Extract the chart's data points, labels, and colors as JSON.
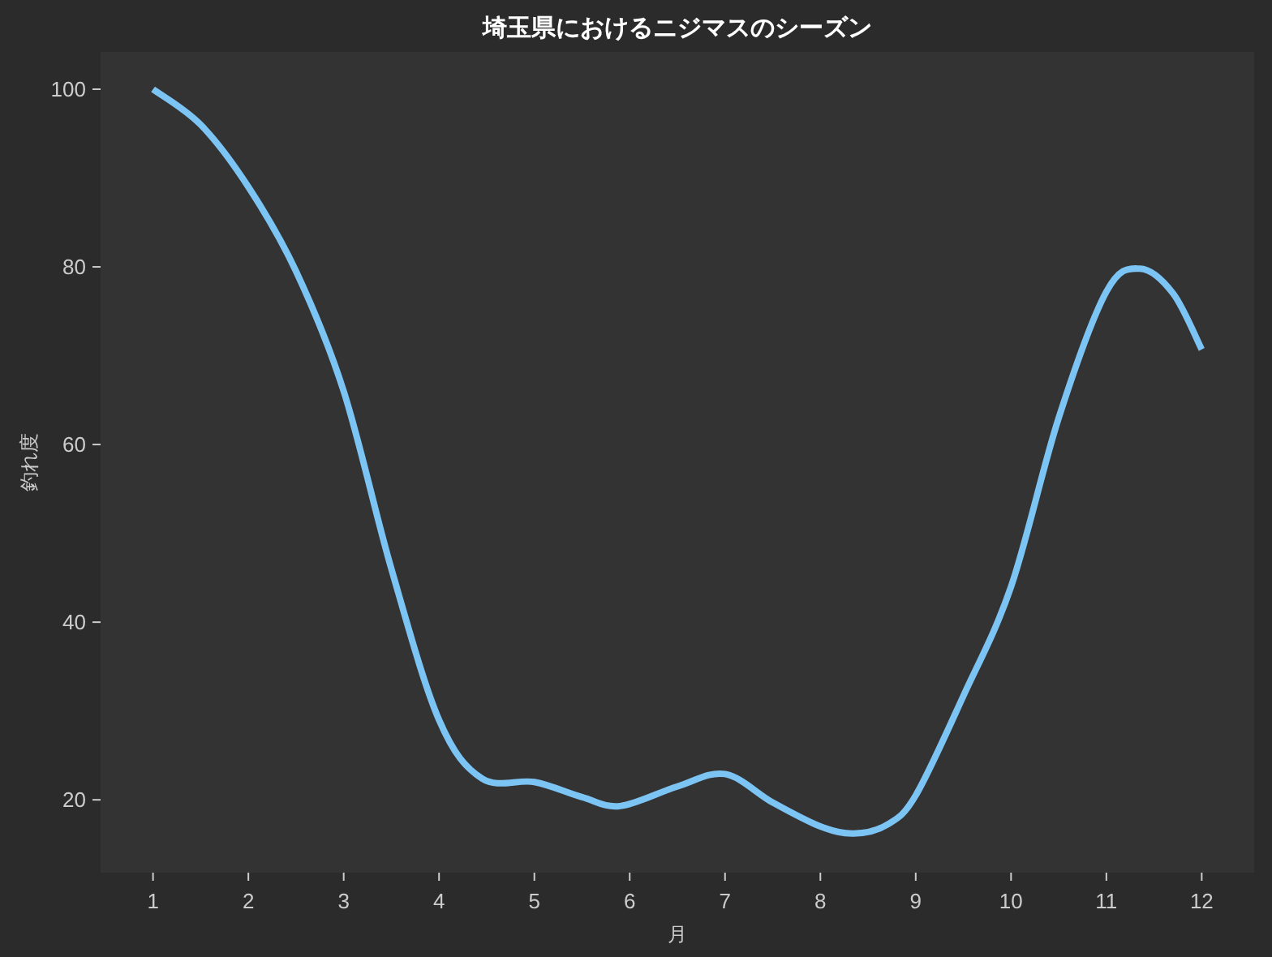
{
  "chart_data": {
    "type": "line",
    "title": "埼玉県におけるニジマスのシーズン",
    "xlabel": "月",
    "ylabel": "釣れ度",
    "x": [
      1,
      1.5,
      2,
      2.5,
      3,
      3.5,
      4,
      4.45,
      5,
      5.5,
      5.9,
      6.5,
      7,
      7.5,
      8,
      8.35,
      8.7,
      9,
      9.5,
      10,
      10.5,
      11,
      11.35,
      11.7,
      12
    ],
    "series": [
      {
        "color": "#7cc4f4",
        "values": [
          100,
          96,
          89,
          79.5,
          66,
          46,
          29,
          22.4,
          22,
          20.3,
          19.3,
          21.5,
          22.9,
          19.7,
          17,
          16.2,
          17.2,
          20.5,
          31.7,
          44,
          63,
          77.2,
          79.8,
          77,
          70.7
        ]
      }
    ],
    "xlim": [
      0.45,
      12.55
    ],
    "ylim": [
      11.8,
      104.2
    ],
    "xticks": [
      1,
      2,
      3,
      4,
      5,
      6,
      7,
      8,
      9,
      10,
      11,
      12
    ],
    "yticks": [
      20,
      40,
      60,
      80,
      100
    ],
    "grid": false,
    "marker": "none",
    "line_style": "solid"
  }
}
